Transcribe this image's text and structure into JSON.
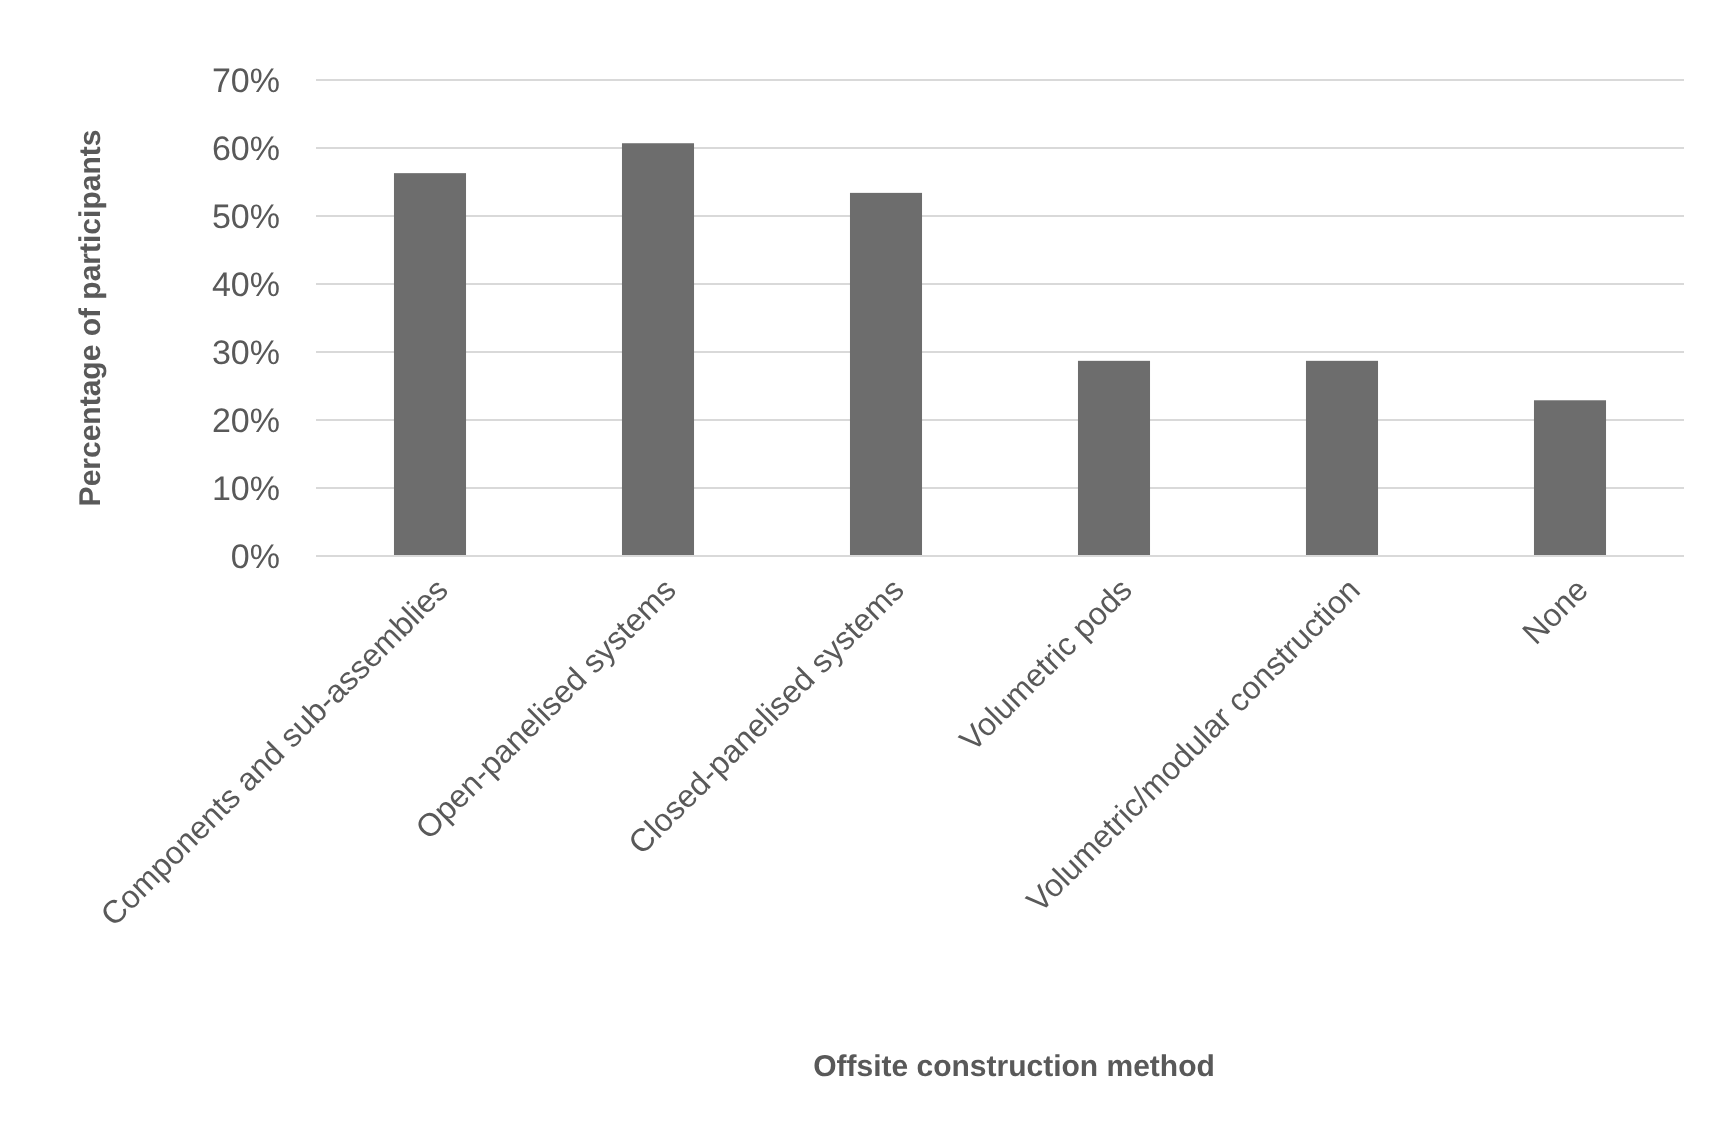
{
  "chart_data": {
    "type": "bar",
    "xlabel": "Offsite construction method",
    "ylabel": "Percentage of participants",
    "categories": [
      "Components and sub-assemblies",
      "Open-panelised systems",
      "Closed-panelised systems",
      "Volumetric pods",
      "Volumetric/modular construction",
      "None"
    ],
    "values": [
      56.3,
      60.7,
      53.4,
      28.7,
      28.7,
      22.9
    ],
    "color": "#6d6d6d",
    "ylim": [
      0,
      70
    ],
    "yticks": [
      {
        "value": 0,
        "label": "0%"
      },
      {
        "value": 10,
        "label": "10%"
      },
      {
        "value": 20,
        "label": "20%"
      },
      {
        "value": 30,
        "label": "30%"
      },
      {
        "value": 40,
        "label": "40%"
      },
      {
        "value": 50,
        "label": "50%"
      },
      {
        "value": 60,
        "label": "60%"
      },
      {
        "value": 70,
        "label": "70%"
      }
    ],
    "grid": "y"
  }
}
